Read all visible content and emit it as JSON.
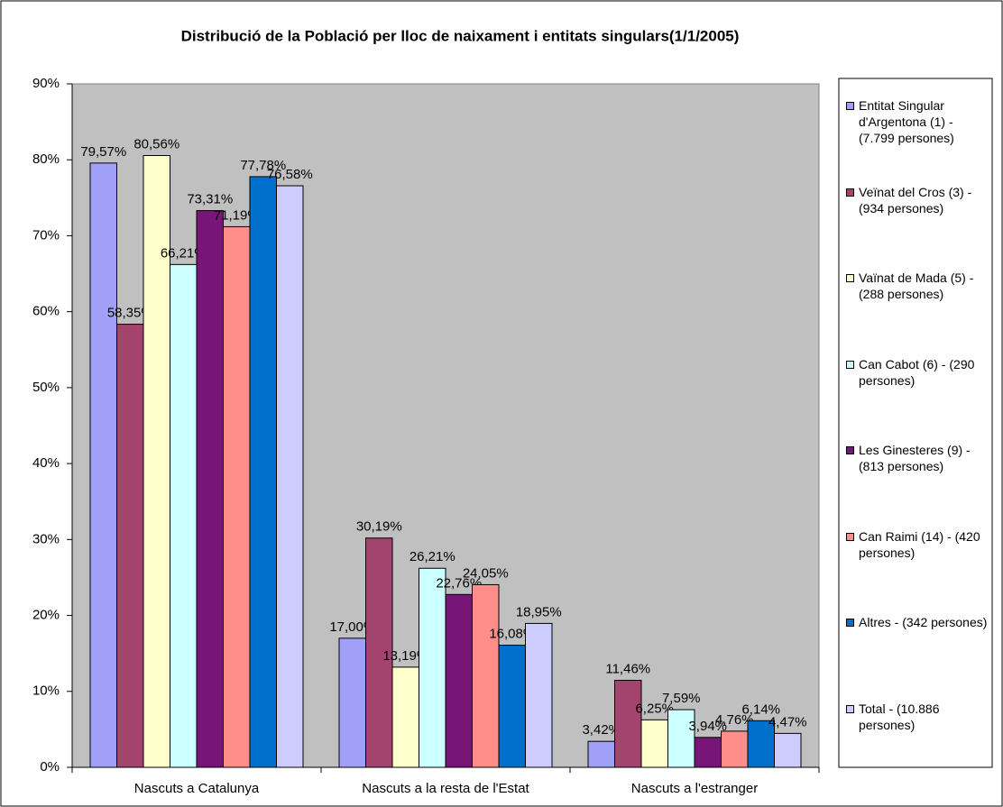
{
  "chart_data": {
    "type": "bar",
    "title": "Distribució de la Població per lloc de naixament i entitats singulars(1/1/2005)",
    "categories": [
      "Nascuts a Catalunya",
      "Nascuts a la resta de l'Estat",
      "Nascuts a l'estranger"
    ],
    "ylim": [
      0,
      90
    ],
    "yticks": [
      {
        "value": 0,
        "label": "0%"
      },
      {
        "value": 10,
        "label": "10%"
      },
      {
        "value": 20,
        "label": "20%"
      },
      {
        "value": 30,
        "label": "30%"
      },
      {
        "value": 40,
        "label": "40%"
      },
      {
        "value": 50,
        "label": "50%"
      },
      {
        "value": 60,
        "label": "60%"
      },
      {
        "value": 70,
        "label": "70%"
      },
      {
        "value": 80,
        "label": "80%"
      },
      {
        "value": 90,
        "label": "90%"
      }
    ],
    "grid": false,
    "legend": "right",
    "series": [
      {
        "name": "Entitat Singular d'Argentona (1) - (7.799 persones)",
        "color": "#a0a0f8",
        "values": [
          79.57,
          17.0,
          3.42
        ],
        "value_labels": [
          "79,57%",
          "17,00%",
          "3,42%"
        ]
      },
      {
        "name": "Veïnat del Cros (3) - (934 persones)",
        "color": "#a2446e",
        "values": [
          58.35,
          30.19,
          11.46
        ],
        "value_labels": [
          "58,35%",
          "30,19%",
          "11,46%"
        ]
      },
      {
        "name": "Vaïnat de Mada (5) - (288 persones)",
        "color": "#ffffcc",
        "values": [
          80.56,
          13.19,
          6.25
        ],
        "value_labels": [
          "80,56%",
          "13,19%",
          "6,25%"
        ]
      },
      {
        "name": "Can Cabot (6) - (290 persones)",
        "color": "#ccffff",
        "values": [
          66.21,
          26.21,
          7.59
        ],
        "value_labels": [
          "66,21%",
          "26,21%",
          "7,59%"
        ]
      },
      {
        "name": "Les Ginesteres (9) - (813 persones)",
        "color": "#771677",
        "values": [
          73.31,
          22.76,
          3.94
        ],
        "value_labels": [
          "73,31%",
          "22,76%",
          "3,94%"
        ]
      },
      {
        "name": "Can Raimi (14) - (420 persones)",
        "color": "#ff8e8a",
        "values": [
          71.19,
          24.05,
          4.76
        ],
        "value_labels": [
          "71,19%",
          "24,05%",
          "4,76%"
        ]
      },
      {
        "name": "Altres - (342 persones)",
        "color": "#0070cc",
        "values": [
          77.78,
          16.08,
          6.14
        ],
        "value_labels": [
          "77,78%",
          "16,08%",
          "6,14%"
        ]
      },
      {
        "name": "Total - (10.886 persones)",
        "color": "#ccccff",
        "values": [
          76.58,
          18.95,
          4.47
        ],
        "value_labels": [
          "76,58%",
          "18,95%",
          "4,47%"
        ]
      }
    ]
  }
}
